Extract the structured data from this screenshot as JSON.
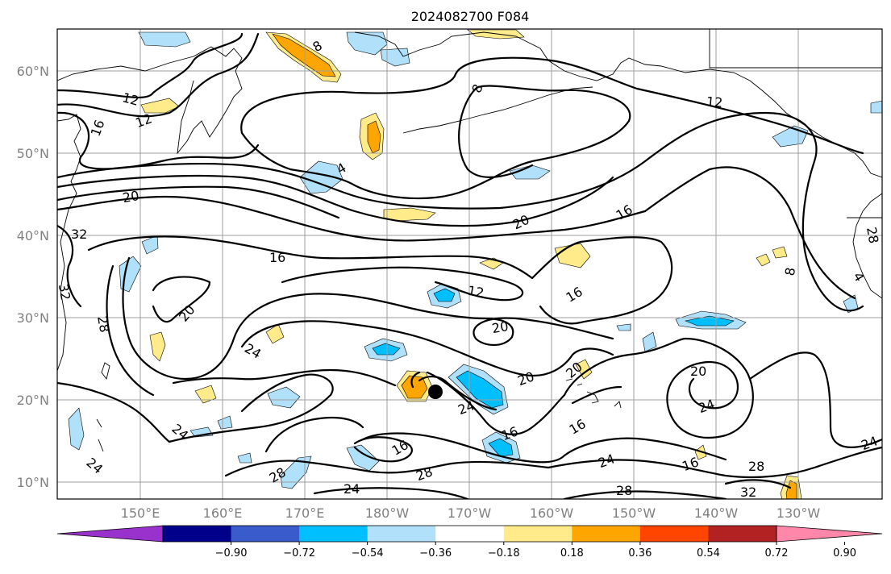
{
  "title": "2024082700 F084",
  "lat_labels": [
    "60°N",
    "50°N",
    "40°N",
    "30°N",
    "20°N",
    "10°N"
  ],
  "lon_labels": [
    "150°E",
    "160°E",
    "170°E",
    "180°W",
    "170°W",
    "160°W",
    "150°W",
    "140°W",
    "130°W"
  ],
  "contour_labels": {
    "l12a": "12",
    "l12b": "12",
    "l16a": "16",
    "l8a": "8",
    "l8b": "8",
    "l4a": "4",
    "l20a": "20",
    "l32a": "32",
    "l32b": "32",
    "l28a": "28",
    "l16b": "16",
    "l20b": "20",
    "l16c": "16",
    "l12c": "12",
    "l20c": "20",
    "l16d": "16",
    "l20d": "20",
    "l24a": "24",
    "l20e": "20",
    "l20f": "20",
    "l24b": "24",
    "l24c": "24",
    "l16e": "16",
    "l16f": "16",
    "l24d": "24",
    "l28b": "28",
    "l28c": "28",
    "l24e": "24",
    "l16g": "16",
    "l24f": "24",
    "l28d": "28",
    "l16h": "16",
    "l28e": "28",
    "l32c": "32",
    "l24g": "24",
    "l12d": "12",
    "l8c": "8",
    "l4b": "4",
    "l28f": "28"
  },
  "colorbar": {
    "ticks": [
      "−0.90",
      "−0.72",
      "−0.54",
      "−0.36",
      "−0.18",
      "0.18",
      "0.36",
      "0.54",
      "0.72",
      "0.90"
    ],
    "colors": [
      "#9932cc",
      "#00008b",
      "#3a5bcc",
      "#00bfff",
      "#b0e0fa",
      "#ffffff",
      "#ffeb8a",
      "#ffa500",
      "#ff4500",
      "#b22222",
      "#ff88aa"
    ]
  }
}
